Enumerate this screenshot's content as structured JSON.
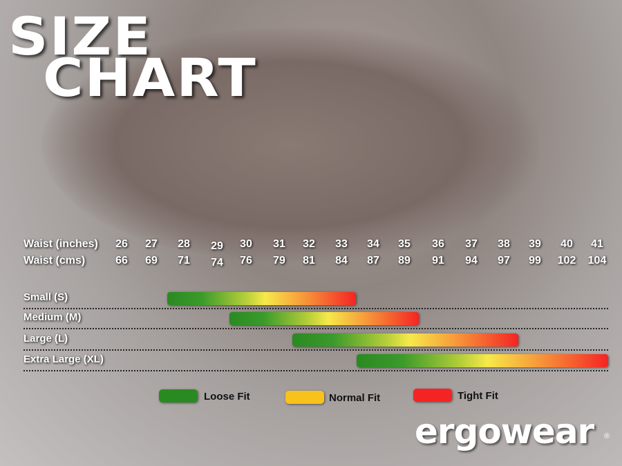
{
  "title": {
    "line1": "SIZE",
    "line2": "CHART"
  },
  "chart_data": {
    "type": "range-bar",
    "row_labels": {
      "inches": "Waist (inches)",
      "cms": "Waist (cms)"
    },
    "waist_inches": [
      26,
      27,
      28,
      29,
      30,
      31,
      32,
      33,
      34,
      35,
      36,
      37,
      38,
      39,
      40,
      41
    ],
    "waist_cms": [
      66,
      69,
      71,
      74,
      76,
      79,
      81,
      84,
      87,
      89,
      91,
      94,
      97,
      99,
      102,
      104
    ],
    "sizes": [
      {
        "label": "Small (S)",
        "from_inches": 28,
        "to_inches": 33
      },
      {
        "label": "Medium (M)",
        "from_inches": 30,
        "to_inches": 35
      },
      {
        "label": "Large (L)",
        "from_inches": 32,
        "to_inches": 38
      },
      {
        "label": "Extra Large (XL)",
        "from_inches": 34,
        "to_inches": 41
      }
    ],
    "legend": [
      {
        "label": "Loose Fit",
        "color": "#2a8a22"
      },
      {
        "label": "Normal Fit",
        "color": "#f8c21a"
      },
      {
        "label": "Tight Fit",
        "color": "#f42424"
      }
    ]
  },
  "brand": {
    "logo": "ergowear",
    "reg": "®"
  }
}
